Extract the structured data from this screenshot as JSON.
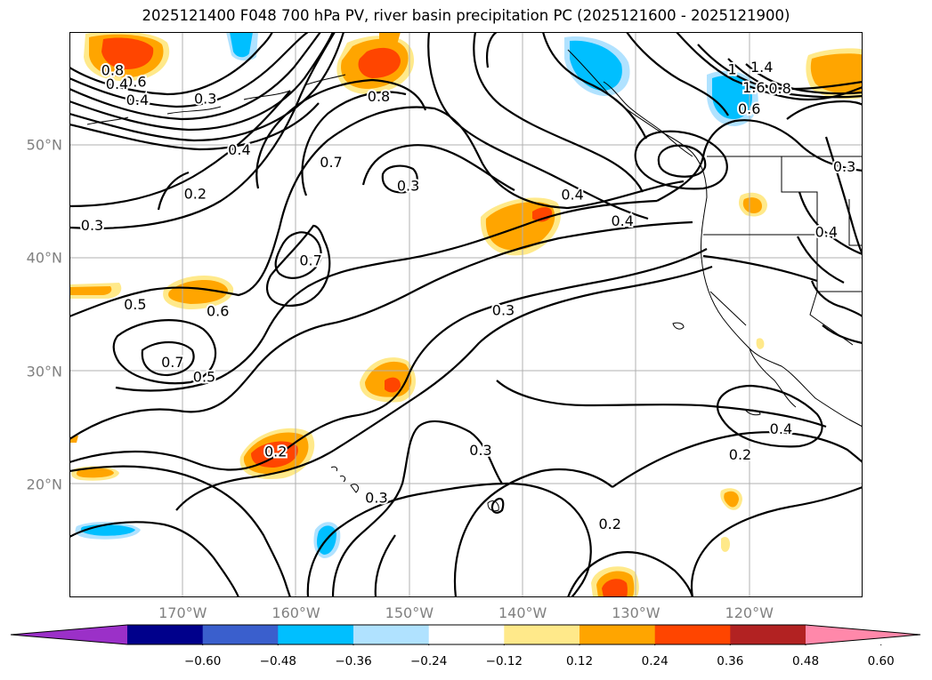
{
  "title": "2025121400 F048 700 hPa PV, river basin precipitation PC (2025121600 - 2025121900)",
  "map": {
    "lat_labels": [
      "50°N",
      "40°N",
      "30°N",
      "20°N"
    ],
    "lat_values": [
      50,
      40,
      30,
      20
    ],
    "lon_labels": [
      "170°W",
      "160°W",
      "150°W",
      "140°W",
      "130°W",
      "120°W"
    ],
    "lon_values": [
      -170,
      -160,
      -150,
      -140,
      -130,
      -120
    ],
    "extent": {
      "lon_min": -180,
      "lon_max": -110,
      "lat_min": 10,
      "lat_max": 60
    },
    "gridlines": true,
    "contour_color": "#000000",
    "contour_labels": [
      {
        "text": "0.8",
        "lon": -176.2,
        "lat": 56.6
      },
      {
        "text": "0.6",
        "lon": -174.2,
        "lat": 55.6
      },
      {
        "text": "0.4",
        "lon": -175.8,
        "lat": 55.4
      },
      {
        "text": "0.4",
        "lon": -174.0,
        "lat": 54.0
      },
      {
        "text": "0.3",
        "lon": -168.0,
        "lat": 54.1
      },
      {
        "text": "0.4",
        "lon": -165.0,
        "lat": 49.6
      },
      {
        "text": "0.2",
        "lon": -168.9,
        "lat": 45.7
      },
      {
        "text": "0.3",
        "lon": -178.0,
        "lat": 42.9
      },
      {
        "text": "0.8",
        "lon": -152.7,
        "lat": 54.3
      },
      {
        "text": "0.7",
        "lon": -156.9,
        "lat": 48.5
      },
      {
        "text": "0.3",
        "lon": -150.1,
        "lat": 46.4
      },
      {
        "text": "0.4",
        "lon": -135.6,
        "lat": 45.6
      },
      {
        "text": "0.4",
        "lon": -131.2,
        "lat": 43.3
      },
      {
        "text": "0.7",
        "lon": -158.7,
        "lat": 39.8
      },
      {
        "text": "0.5",
        "lon": -174.2,
        "lat": 35.9
      },
      {
        "text": "0.6",
        "lon": -166.9,
        "lat": 35.3
      },
      {
        "text": "0.7",
        "lon": -170.9,
        "lat": 30.8
      },
      {
        "text": "0.5",
        "lon": -168.1,
        "lat": 29.5
      },
      {
        "text": "0.3",
        "lon": -141.7,
        "lat": 35.4
      },
      {
        "text": "0.2",
        "lon": -161.8,
        "lat": 22.9
      },
      {
        "text": "0.3",
        "lon": -143.7,
        "lat": 23.0
      },
      {
        "text": "0.3",
        "lon": -152.9,
        "lat": 18.8
      },
      {
        "text": "0.2",
        "lon": -132.3,
        "lat": 16.5
      },
      {
        "text": "0.4",
        "lon": -117.2,
        "lat": 24.9
      },
      {
        "text": "0.2",
        "lon": -120.8,
        "lat": 22.6
      },
      {
        "text": "0.3",
        "lon": -111.6,
        "lat": 48.1
      },
      {
        "text": "0.4",
        "lon": -113.2,
        "lat": 42.3
      },
      {
        "text": "0.6",
        "lon": -120.0,
        "lat": 53.2
      },
      {
        "text": "0.8",
        "lon": -117.3,
        "lat": 55.0
      },
      {
        "text": "1.6",
        "lon": -119.6,
        "lat": 55.1
      },
      {
        "text": "1.4",
        "lon": -118.9,
        "lat": 56.9
      },
      {
        "text": "1",
        "lon": -121.5,
        "lat": 56.7
      }
    ]
  },
  "colorbar": {
    "ticks": [
      "−0.60",
      "−0.48",
      "−0.36",
      "−0.24",
      "−0.12",
      "0.12",
      "0.24",
      "0.36",
      "0.48",
      "0.60"
    ],
    "colors": [
      "#9b30c8",
      "#00008b",
      "#3a5fcd",
      "#00bfff",
      "#b0e2ff",
      "#ffffff",
      "#ffe98a",
      "#ffa500",
      "#ff4500",
      "#b22222",
      "#ff88aa"
    ],
    "extend": "both"
  }
}
